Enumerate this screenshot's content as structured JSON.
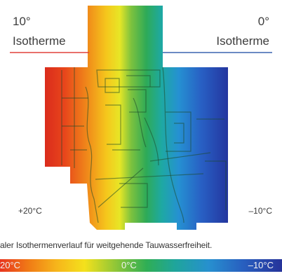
{
  "isotherms": {
    "left": {
      "temp": "10°",
      "label": "Isotherme",
      "color": "#e0413a"
    },
    "right": {
      "temp": "0°",
      "label": "Isotherme",
      "color": "#3a64b0"
    }
  },
  "side_temps": {
    "inside": "+20°C",
    "outside": "–10°C"
  },
  "caption": "aler Isothermenverlauf für weitgehende Tauwasserfreiheit.",
  "scale": {
    "left": "20°C",
    "middle": "0°C",
    "right": "–10°C"
  }
}
